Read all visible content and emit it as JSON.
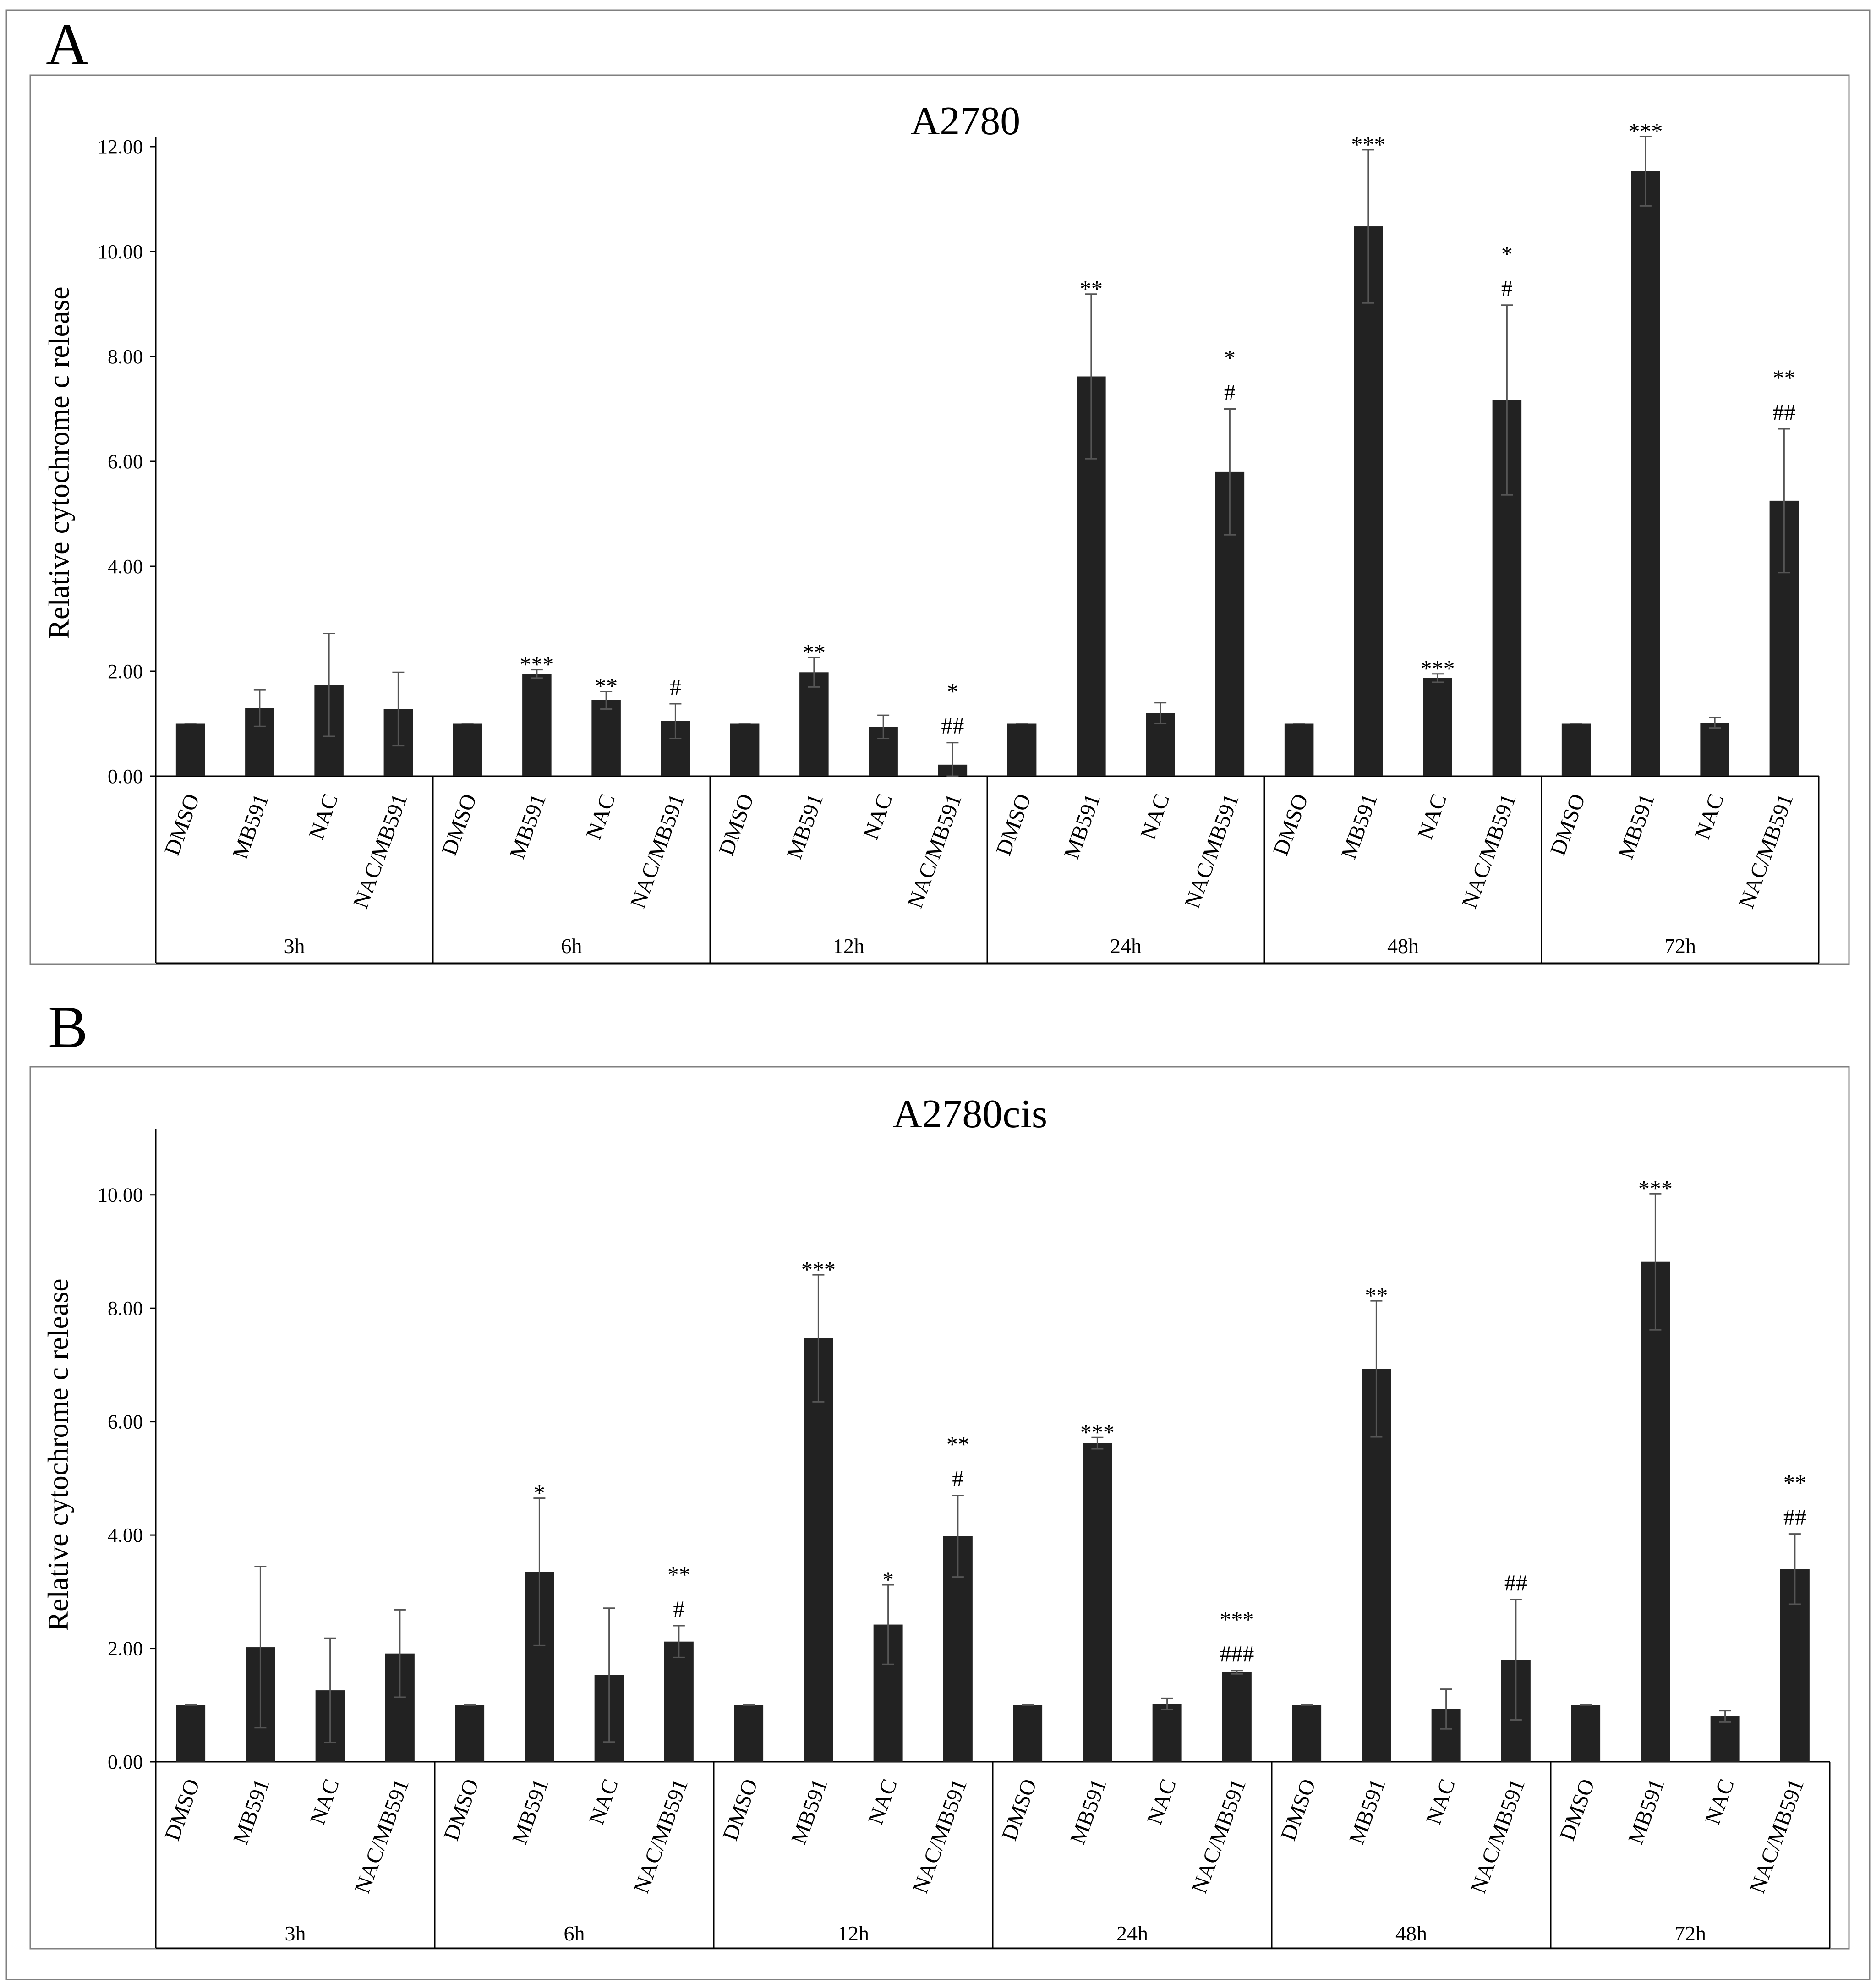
{
  "panels": [
    {
      "letter": "A"
    },
    {
      "letter": "B"
    }
  ],
  "chart_data": [
    {
      "type": "bar",
      "title": "A2780",
      "xlabel": "",
      "ylabel": "Relative cytochrome c release",
      "ylim": [
        0,
        12
      ],
      "yticks": [
        "0.00",
        "2.00",
        "4.00",
        "6.00",
        "8.00",
        "10.00",
        "12.00"
      ],
      "groups": [
        "3h",
        "6h",
        "12h",
        "24h",
        "48h",
        "72h"
      ],
      "categories": [
        "DMSO",
        "MB591",
        "NAC",
        "NAC/MB591"
      ],
      "values": [
        [
          1.0,
          1.3,
          1.74,
          1.28
        ],
        [
          1.0,
          1.95,
          1.45,
          1.05
        ],
        [
          1.0,
          1.98,
          0.94,
          0.22
        ],
        [
          1.0,
          7.62,
          1.2,
          5.8
        ],
        [
          1.0,
          10.48,
          1.87,
          7.17
        ],
        [
          1.0,
          11.53,
          1.02,
          5.25
        ]
      ],
      "errors": [
        [
          0.0,
          0.35,
          0.98,
          0.7
        ],
        [
          0.0,
          0.08,
          0.17,
          0.33
        ],
        [
          0.0,
          0.28,
          0.22,
          0.42
        ],
        [
          0.0,
          1.57,
          0.2,
          1.2
        ],
        [
          0.0,
          1.46,
          0.08,
          1.81
        ],
        [
          0.0,
          0.66,
          0.1,
          1.37
        ]
      ],
      "significance_star": [
        [
          "",
          "",
          "",
          ""
        ],
        [
          "",
          "***",
          "**",
          ""
        ],
        [
          "",
          "**",
          "",
          "*"
        ],
        [
          "",
          "**",
          "",
          "*"
        ],
        [
          "",
          "***",
          "***",
          "*"
        ],
        [
          "",
          "***",
          "",
          "**"
        ]
      ],
      "significance_hash": [
        [
          "",
          "",
          "",
          ""
        ],
        [
          "",
          "",
          "",
          "#"
        ],
        [
          "",
          "",
          "",
          "##"
        ],
        [
          "",
          "",
          "",
          "#"
        ],
        [
          "",
          "",
          "",
          "#"
        ],
        [
          "",
          "",
          "",
          "##"
        ]
      ]
    },
    {
      "type": "bar",
      "title": "A2780cis",
      "xlabel": "",
      "ylabel": "Relative cytochrome c release",
      "ylim": [
        0,
        11
      ],
      "yticks": [
        "0.00",
        "2.00",
        "4.00",
        "6.00",
        "8.00",
        "10.00"
      ],
      "groups": [
        "3h",
        "6h",
        "12h",
        "24h",
        "48h",
        "72h"
      ],
      "categories": [
        "DMSO",
        "MB591",
        "NAC",
        "NAC/MB591"
      ],
      "values": [
        [
          1.0,
          2.02,
          1.26,
          1.91
        ],
        [
          1.0,
          3.35,
          1.53,
          2.12
        ],
        [
          1.0,
          7.47,
          2.42,
          3.98
        ],
        [
          1.0,
          5.62,
          1.02,
          1.58
        ],
        [
          1.0,
          6.93,
          0.93,
          1.8
        ],
        [
          1.0,
          8.82,
          0.8,
          3.4
        ]
      ],
      "errors": [
        [
          0.0,
          1.42,
          0.92,
          0.77
        ],
        [
          0.0,
          1.3,
          1.18,
          0.28
        ],
        [
          0.0,
          1.12,
          0.7,
          0.72
        ],
        [
          0.0,
          0.1,
          0.1,
          0.03
        ],
        [
          0.0,
          1.2,
          0.35,
          1.06
        ],
        [
          0.0,
          1.2,
          0.1,
          0.62
        ]
      ],
      "significance_star": [
        [
          "",
          "",
          "",
          ""
        ],
        [
          "",
          "*",
          "",
          "**"
        ],
        [
          "",
          "***",
          "*",
          "**"
        ],
        [
          "",
          "***",
          "",
          "***"
        ],
        [
          "",
          "**",
          "",
          ""
        ],
        [
          "",
          "***",
          "",
          "**"
        ]
      ],
      "significance_hash": [
        [
          "",
          "",
          "",
          ""
        ],
        [
          "",
          "",
          "",
          "#"
        ],
        [
          "",
          "",
          "",
          "#"
        ],
        [
          "",
          "",
          "",
          "###"
        ],
        [
          "",
          "",
          "",
          "##"
        ],
        [
          "",
          "",
          "",
          "##"
        ]
      ]
    }
  ]
}
